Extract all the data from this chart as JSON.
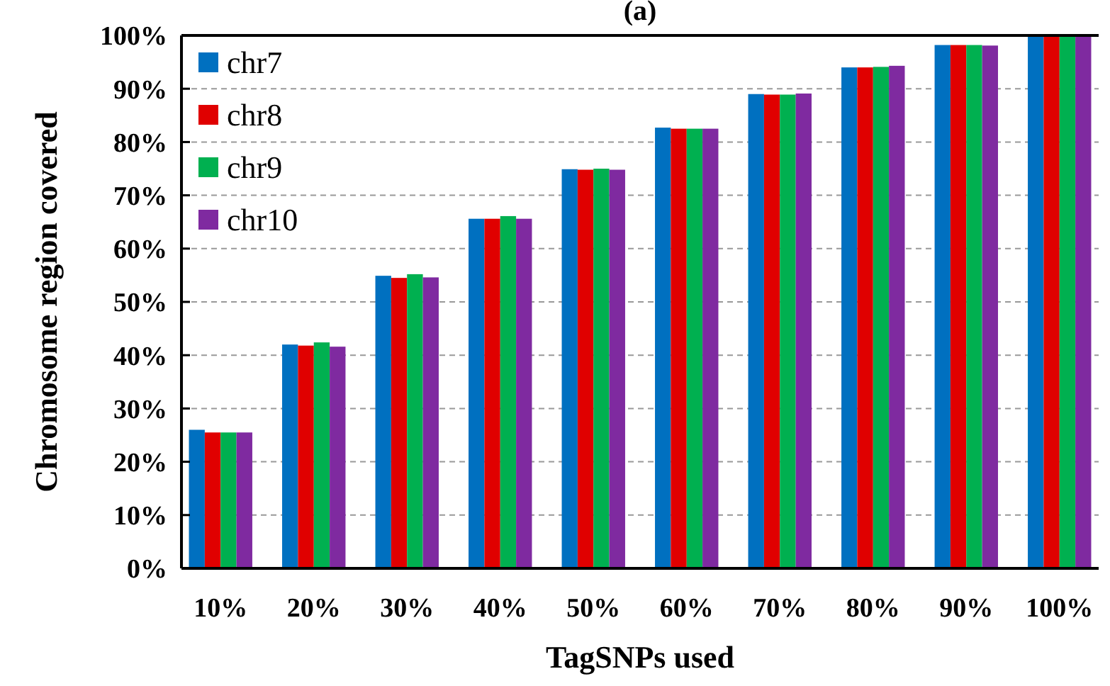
{
  "chart_data": {
    "type": "bar",
    "title": "(a)",
    "xlabel": "TagSNPs used",
    "ylabel": "Chromosome region covered",
    "categories": [
      "10%",
      "20%",
      "30%",
      "40%",
      "50%",
      "60%",
      "70%",
      "80%",
      "90%",
      "100%"
    ],
    "series": [
      {
        "name": "chr7",
        "color": "#0070c0",
        "values": [
          26,
          42,
          54.9,
          65.6,
          74.9,
          82.7,
          89,
          94,
          98.2,
          100
        ]
      },
      {
        "name": "chr8",
        "color": "#e00000",
        "values": [
          25.5,
          41.8,
          54.5,
          65.6,
          74.8,
          82.5,
          88.9,
          94,
          98.2,
          100
        ]
      },
      {
        "name": "chr9",
        "color": "#00b050",
        "values": [
          25.5,
          42.4,
          55.2,
          66.1,
          75,
          82.5,
          88.9,
          94.1,
          98.2,
          100
        ]
      },
      {
        "name": "chr10",
        "color": "#7f2aa0",
        "values": [
          25.5,
          41.6,
          54.6,
          65.6,
          74.8,
          82.5,
          89.1,
          94.3,
          98.1,
          100
        ]
      }
    ],
    "ylim": [
      0,
      100
    ],
    "yticks": [
      {
        "value": 0,
        "label": "0%"
      },
      {
        "value": 10,
        "label": "10%"
      },
      {
        "value": 20,
        "label": "20%"
      },
      {
        "value": 30,
        "label": "30%"
      },
      {
        "value": 40,
        "label": "40%"
      },
      {
        "value": 50,
        "label": "50%"
      },
      {
        "value": 60,
        "label": "60%"
      },
      {
        "value": 70,
        "label": "70%"
      },
      {
        "value": 80,
        "label": "80%"
      },
      {
        "value": 90,
        "label": "90%"
      },
      {
        "value": 100,
        "label": "100%"
      }
    ],
    "grid": "y",
    "legend": "top left"
  }
}
